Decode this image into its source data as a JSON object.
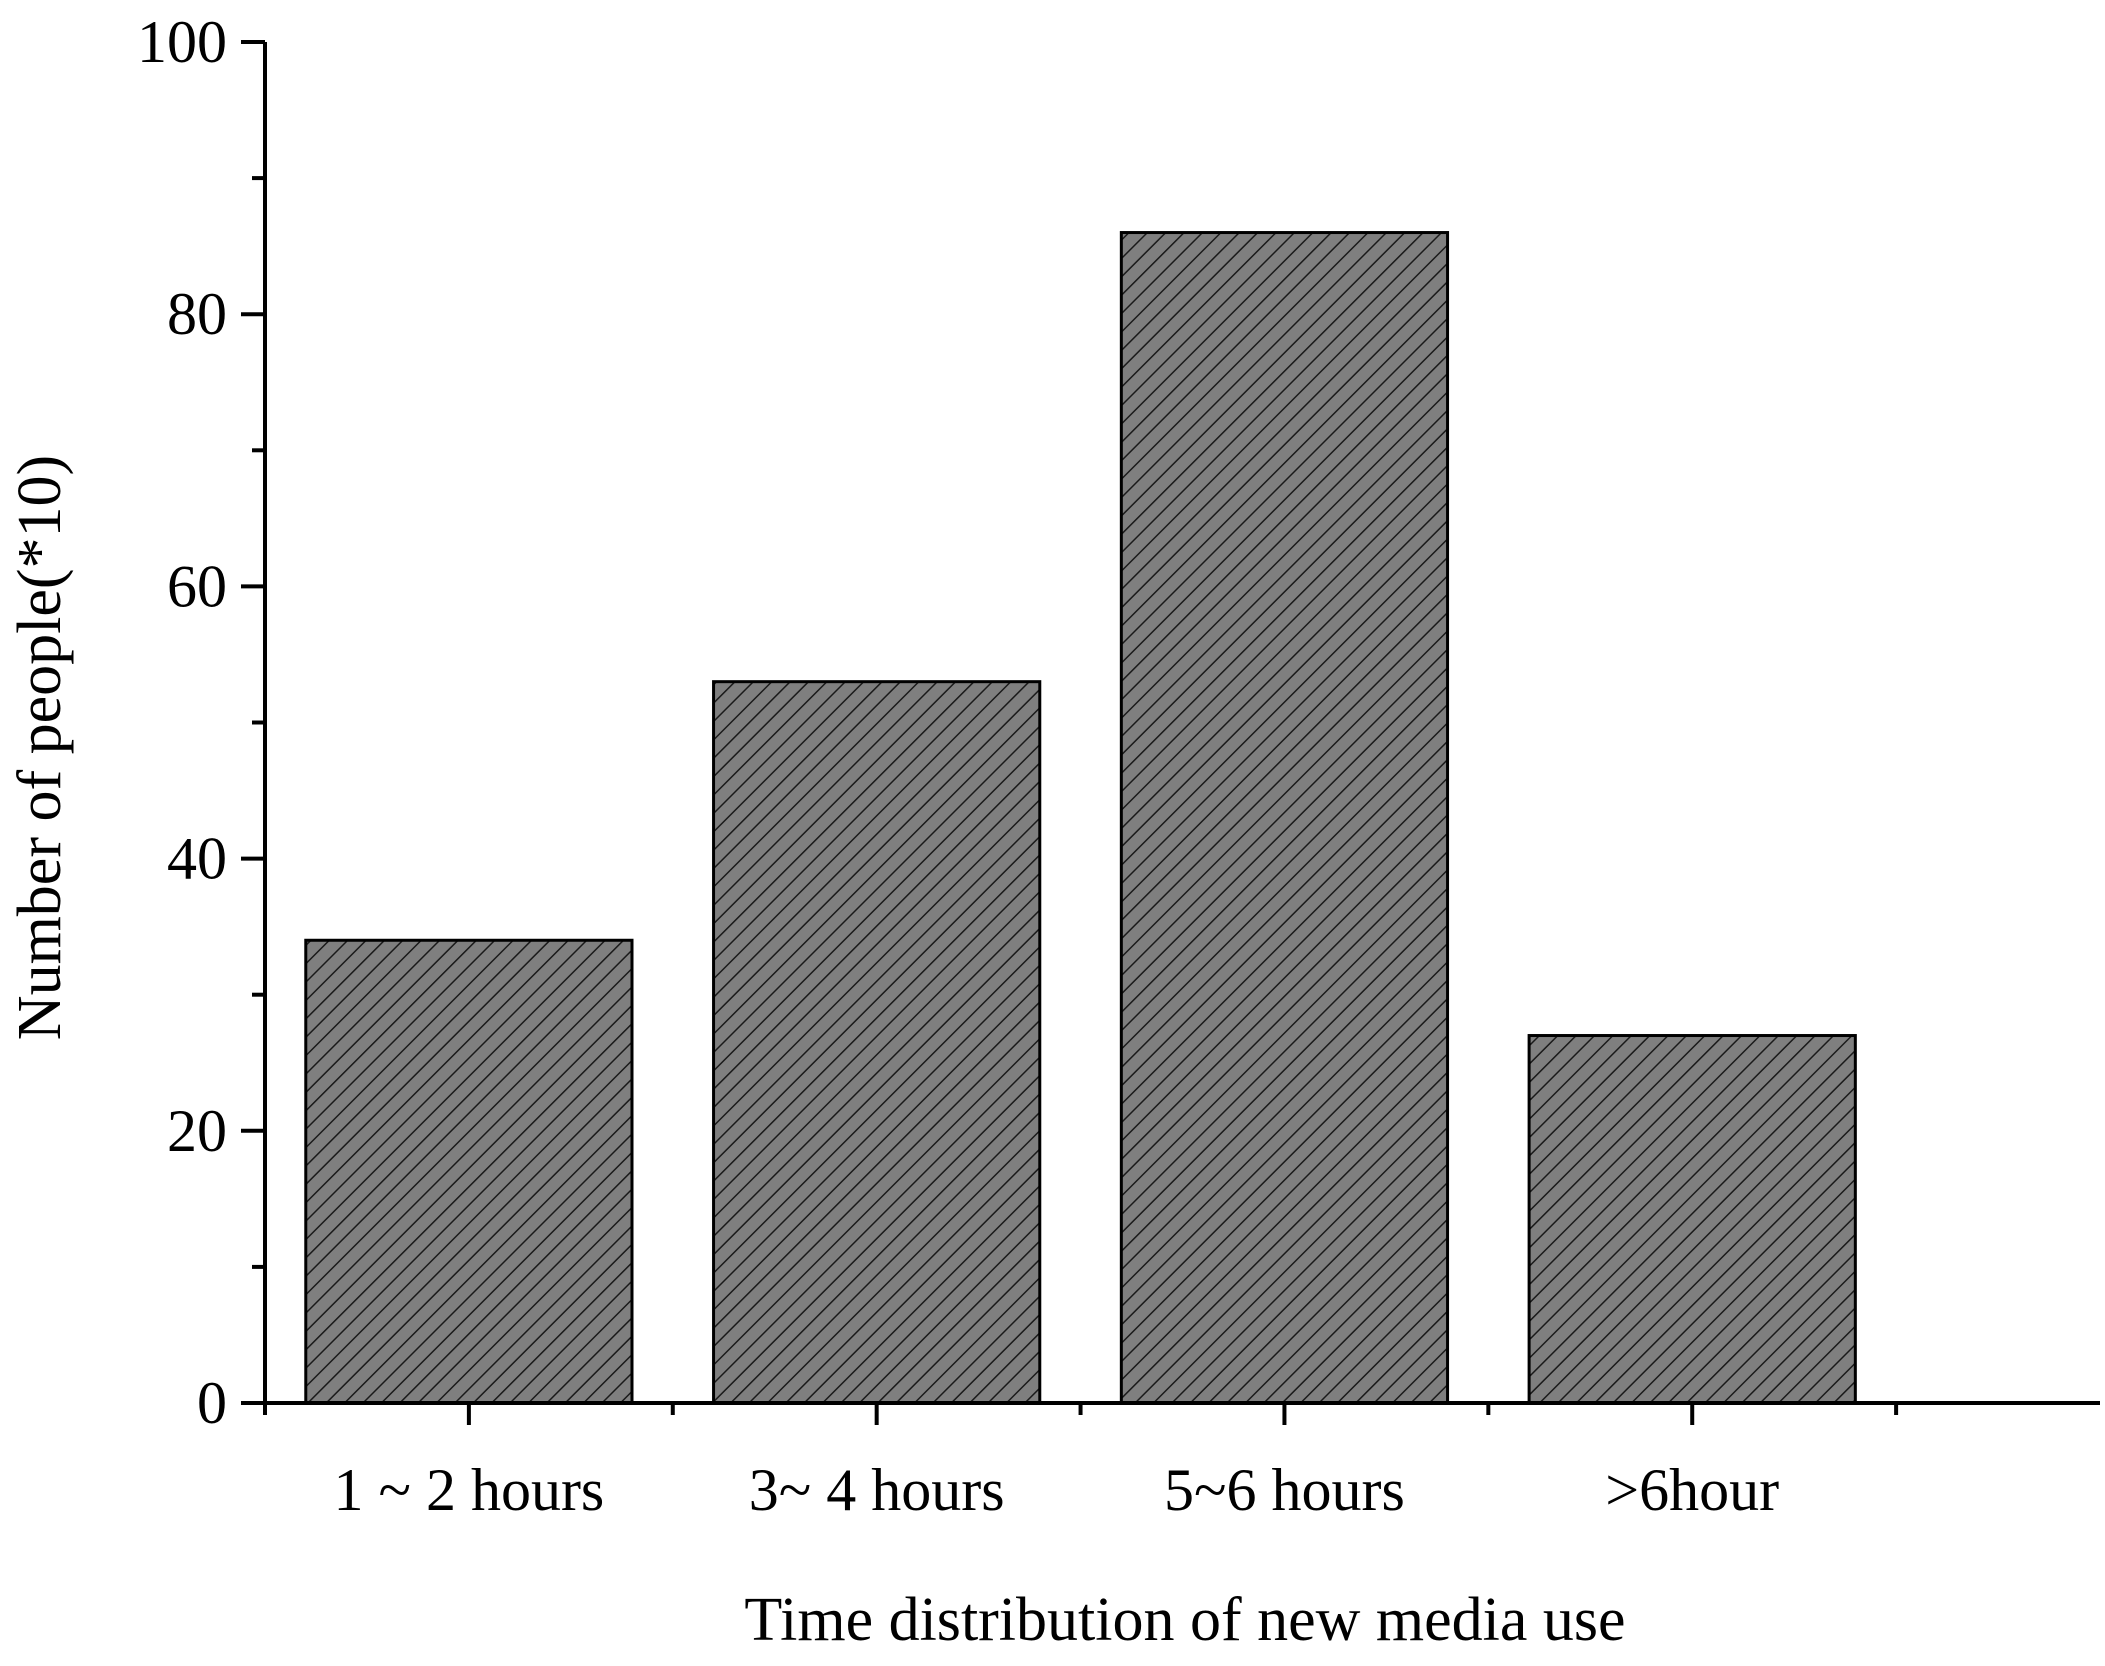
{
  "chart_data": {
    "type": "bar",
    "title": "",
    "xlabel": "Time distribution of new media use",
    "ylabel": "Number of people(*10)",
    "categories": [
      "1 ~ 2 hours",
      "3~ 4 hours",
      "5~6 hours",
      ">6hour"
    ],
    "values": [
      34,
      53,
      86,
      27
    ],
    "ylim": [
      0,
      100
    ],
    "yticks": [
      0,
      20,
      40,
      60,
      80,
      100
    ],
    "ytick_labels": [
      "0",
      "20",
      "40",
      "60",
      "80",
      "100"
    ],
    "minor_yticks": [
      10,
      30,
      50,
      70,
      90
    ],
    "grid": false,
    "legend": "none",
    "bar_fill": "hatched",
    "colors": {
      "bar_fill": "#7f7f7f",
      "hatch": "#1a1a1a",
      "bar_stroke": "#000000",
      "axis": "#000000"
    }
  }
}
